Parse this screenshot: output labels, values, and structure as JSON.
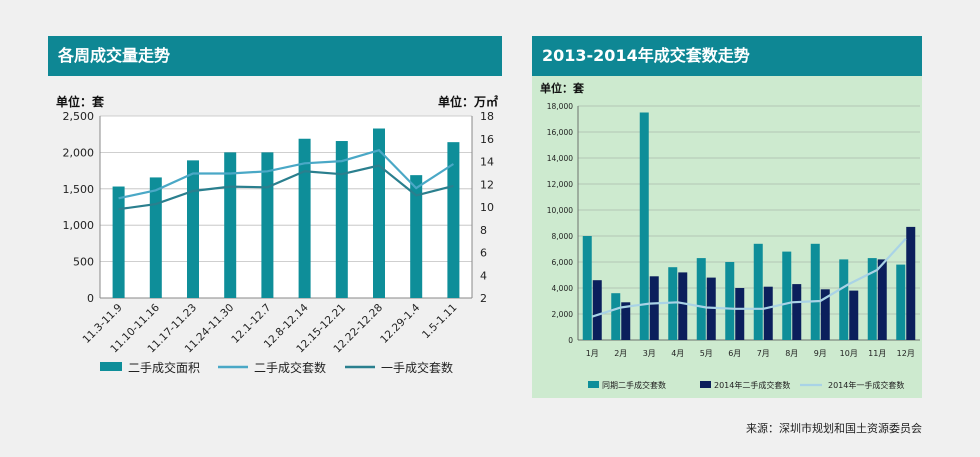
{
  "left_panel": {
    "title": "各周成交量走势",
    "unit_left": "单位：套",
    "unit_right": "单位：万㎡"
  },
  "right_panel": {
    "title": "2013-2014年成交套数走势",
    "unit": "单位：套"
  },
  "source": "来源：深圳市规划和国土资源委员会",
  "colors": {
    "header": "#0e8794",
    "bar_teal": "#0e8e99",
    "line_light": "#4aa8c6",
    "line_dark": "#2a7f8e",
    "bar_navy": "#0b1f5c",
    "line_pale": "#a9d3e6",
    "right_bg": "#cdeacf"
  },
  "chart_data": [
    {
      "type": "bar",
      "title": "各周成交量走势",
      "categories": [
        "11.3-11.9",
        "11.10-11.16",
        "11.17-11.23",
        "11.24-11.30",
        "12.1-12.7",
        "12.8-12.14",
        "12.15-12.21",
        "12.22-12.28",
        "12.29-1.4",
        "1.5-1.11"
      ],
      "yticks_left": [
        "0",
        "500",
        "1,000",
        "1,500",
        "2,000",
        "2,500"
      ],
      "yticks_right": [
        "2",
        "4",
        "6",
        "8",
        "10",
        "12",
        "14",
        "16",
        "18"
      ],
      "ylim_left": [
        0,
        2500
      ],
      "ylim_right": [
        2,
        18
      ],
      "series": [
        {
          "name": "二手成交面积",
          "kind": "bar",
          "axis": "right",
          "values": [
            11.8,
            12.6,
            14.1,
            14.8,
            14.8,
            16.0,
            15.8,
            16.9,
            12.8,
            15.7
          ]
        },
        {
          "name": "二手成交套数",
          "kind": "line",
          "axis": "left",
          "values": [
            1370,
            1480,
            1710,
            1710,
            1740,
            1850,
            1880,
            2030,
            1510,
            1840
          ]
        },
        {
          "name": "一手成交套数",
          "kind": "line",
          "axis": "left",
          "values": [
            1220,
            1290,
            1470,
            1530,
            1520,
            1740,
            1700,
            1820,
            1410,
            1540
          ]
        }
      ],
      "legend": [
        "二手成交面积",
        "二手成交套数",
        "一手成交套数"
      ]
    },
    {
      "type": "bar",
      "title": "2013-2014年成交套数走势",
      "categories": [
        "1月",
        "2月",
        "3月",
        "4月",
        "5月",
        "6月",
        "7月",
        "8月",
        "9月",
        "10月",
        "11月",
        "12月"
      ],
      "yticks": [
        "0",
        "2,000",
        "4,000",
        "6,000",
        "8,000",
        "10,000",
        "12,000",
        "14,000",
        "16,000",
        "18,000"
      ],
      "ylim": [
        0,
        18000
      ],
      "series": [
        {
          "name": "同期二手成交套数",
          "kind": "bar",
          "values": [
            8000,
            3600,
            17500,
            5600,
            6300,
            6000,
            7400,
            6800,
            7400,
            6200,
            6300,
            5800
          ]
        },
        {
          "name": "2014年二手成交套数",
          "kind": "bar",
          "values": [
            4600,
            2900,
            4900,
            5200,
            4800,
            4000,
            4100,
            4300,
            3900,
            3800,
            6200,
            8700
          ]
        },
        {
          "name": "2014年一手成交套数",
          "kind": "line",
          "values": [
            1800,
            2500,
            2800,
            2900,
            2500,
            2400,
            2400,
            2900,
            3000,
            4300,
            5400,
            7800
          ]
        }
      ],
      "legend": [
        "同期二手成交套数",
        "2014年二手成交套数",
        "2014年一手成交套数"
      ]
    }
  ]
}
